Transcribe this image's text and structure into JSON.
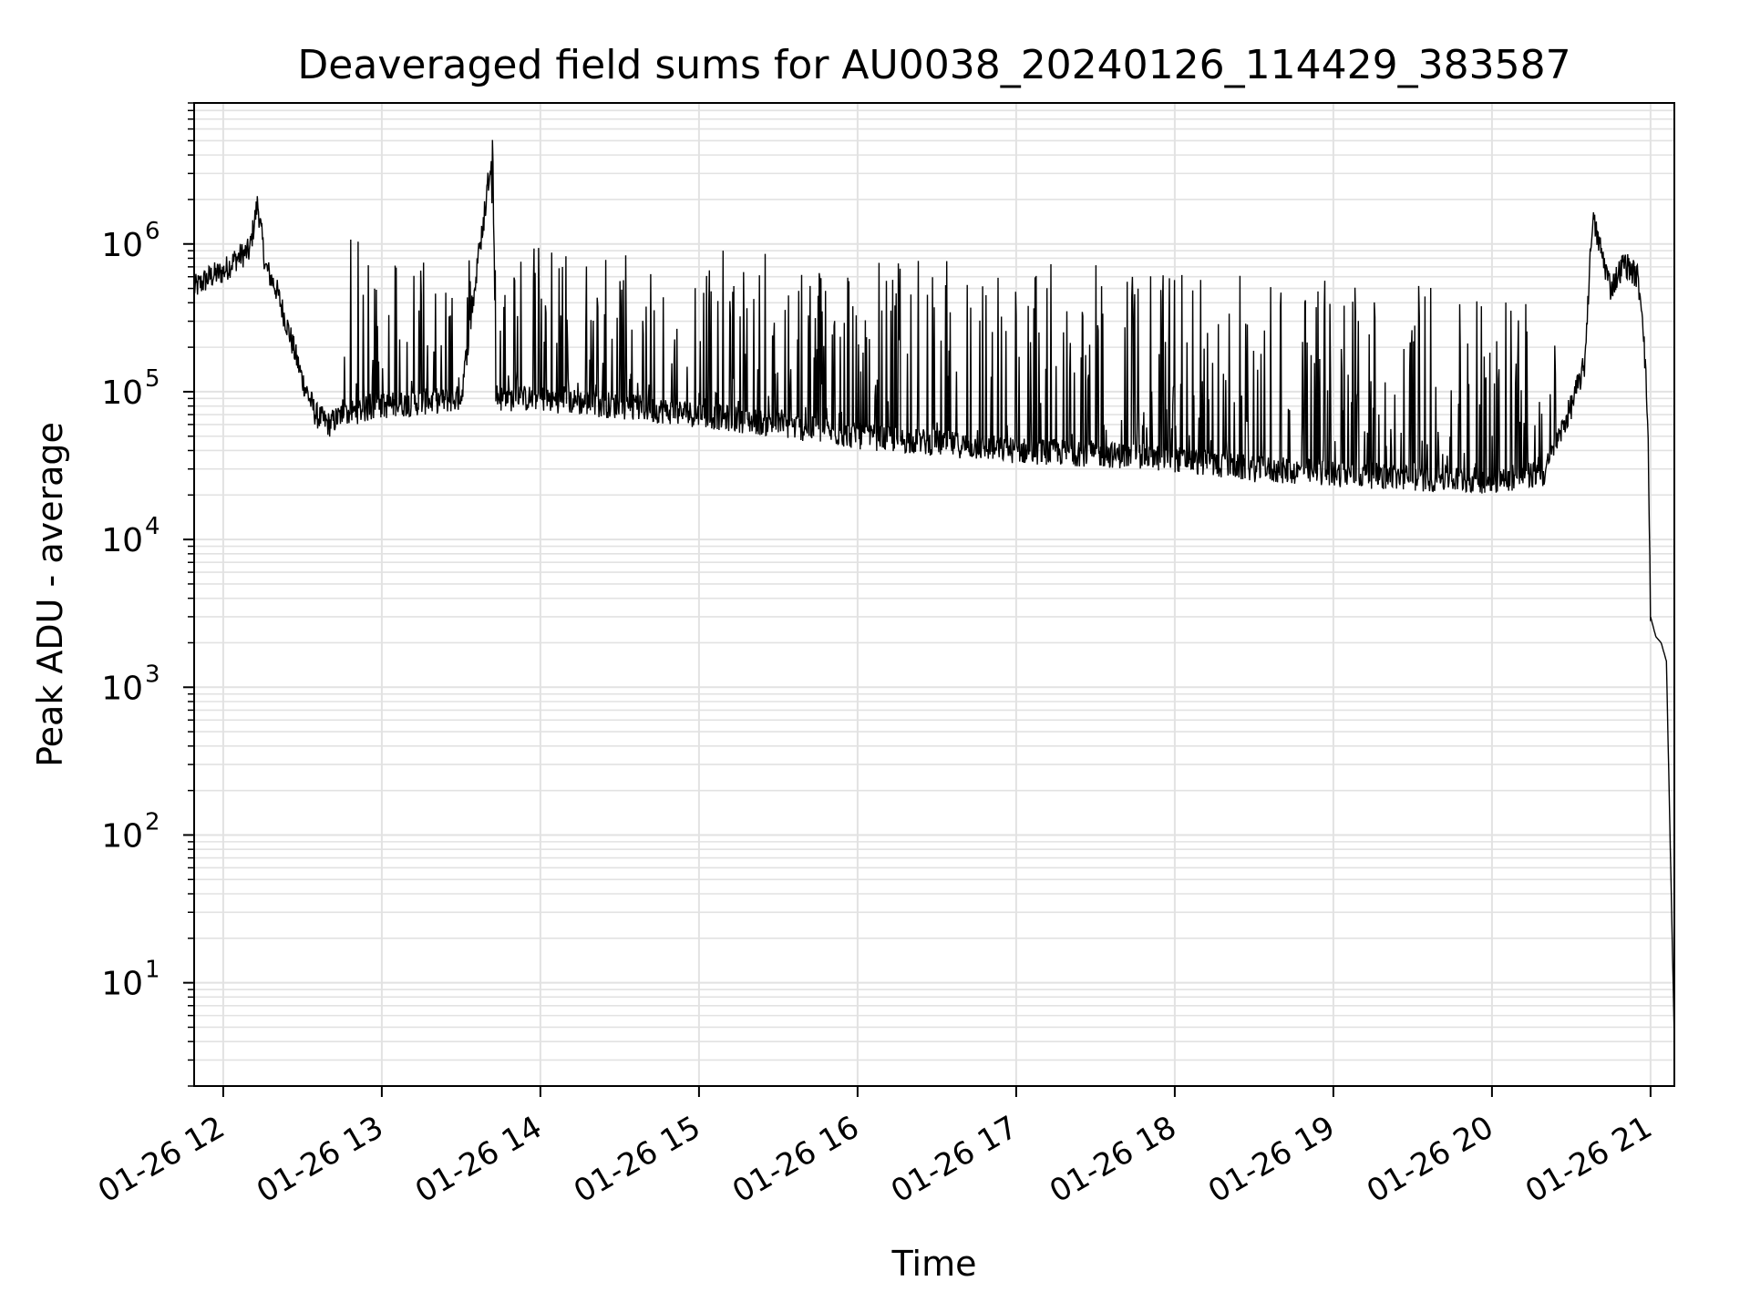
{
  "chart_data": {
    "type": "line",
    "title": "Deaveraged field sums for AU0038_20240126_114429_383587",
    "xlabel": "Time",
    "ylabel": "Peak ADU - average",
    "yscale": "log",
    "grid": true,
    "legend": "none",
    "x_tick_labels": [
      "01-26 12",
      "01-26 13",
      "01-26 14",
      "01-26 15",
      "01-26 16",
      "01-26 17",
      "01-26 18",
      "01-26 19",
      "01-26 20",
      "01-26 21"
    ],
    "y_tick_labels": [
      {
        "base": "10",
        "exp": "1",
        "value": 10
      },
      {
        "base": "10",
        "exp": "2",
        "value": 100
      },
      {
        "base": "10",
        "exp": "3",
        "value": 1000
      },
      {
        "base": "10",
        "exp": "4",
        "value": 10000
      },
      {
        "base": "10",
        "exp": "5",
        "value": 100000
      },
      {
        "base": "10",
        "exp": "6",
        "value": 1000000
      }
    ],
    "xlim": [
      "2024-01-26 11:49",
      "2024-01-26 21:09"
    ],
    "ylim": [
      2,
      9000000
    ],
    "series_color": "#000000",
    "series": [
      {
        "x": [
          "2024-01-26 11:49",
          "2024-01-26 11:55",
          "2024-01-26 12:00",
          "2024-01-26 12:05",
          "2024-01-26 12:10",
          "2024-01-26 12:13",
          "2024-01-26 12:16",
          "2024-01-26 12:20",
          "2024-01-26 12:25",
          "2024-01-26 12:30",
          "2024-01-26 12:35",
          "2024-01-26 12:40",
          "2024-01-26 12:45",
          "2024-01-26 12:52",
          "2024-01-26 13:00",
          "2024-01-26 13:15",
          "2024-01-26 13:30",
          "2024-01-26 13:42",
          "2024-01-26 13:43",
          "2024-01-26 13:45",
          "2024-01-26 14:00",
          "2024-01-26 14:30",
          "2024-01-26 15:00",
          "2024-01-26 15:30",
          "2024-01-26 16:00",
          "2024-01-26 16:30",
          "2024-01-26 17:00",
          "2024-01-26 17:30",
          "2024-01-26 18:00",
          "2024-01-26 18:30",
          "2024-01-26 19:00",
          "2024-01-26 19:30",
          "2024-01-26 20:00",
          "2024-01-26 20:20",
          "2024-01-26 20:30",
          "2024-01-26 20:35",
          "2024-01-26 20:38",
          "2024-01-26 20:45",
          "2024-01-26 20:50",
          "2024-01-26 20:55",
          "2024-01-26 20:57",
          "2024-01-26 20:59",
          "2024-01-26 21:00",
          "2024-01-26 21:02",
          "2024-01-26 21:04",
          "2024-01-26 21:06",
          "2024-01-26 21:09"
        ],
        "y": [
          500000,
          600000,
          650000,
          800000,
          900000,
          1900000,
          700000,
          500000,
          250000,
          120000,
          70000,
          60000,
          70000,
          75000,
          80000,
          85000,
          90000,
          4800000,
          95000,
          90000,
          90000,
          80000,
          70000,
          60000,
          50000,
          45000,
          40000,
          38000,
          35000,
          30000,
          28000,
          26000,
          25000,
          28000,
          80000,
          150000,
          1500000,
          500000,
          750000,
          600000,
          350000,
          60000,
          3000,
          2200,
          2000,
          1500,
          4
        ]
      }
    ]
  }
}
